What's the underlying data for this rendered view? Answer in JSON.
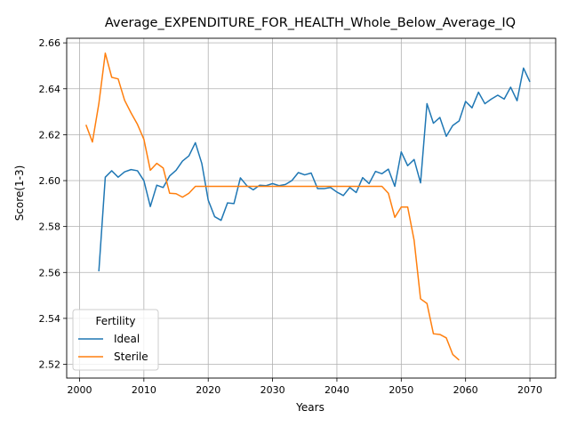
{
  "chart_data": {
    "type": "line",
    "title": "Average_EXPENDITURE_FOR_HEALTH_Whole_Below_Average_IQ",
    "xlabel": "Years",
    "ylabel": "Score(1-3)",
    "xlim": [
      1998,
      2074
    ],
    "ylim": [
      2.514,
      2.662
    ],
    "xticks": [
      2000,
      2010,
      2020,
      2030,
      2040,
      2050,
      2060,
      2070
    ],
    "yticks": [
      2.52,
      2.54,
      2.56,
      2.58,
      2.6,
      2.62,
      2.64,
      2.66
    ],
    "xtick_labels": [
      "2000",
      "2010",
      "2020",
      "2030",
      "2040",
      "2050",
      "2060",
      "2070"
    ],
    "ytick_labels": [
      "2.52",
      "2.54",
      "2.56",
      "2.58",
      "2.60",
      "2.62",
      "2.64",
      "2.66"
    ],
    "grid": true,
    "legend": {
      "title": "Fertility",
      "placement": "lower-left"
    },
    "series": [
      {
        "name": "Ideal",
        "color": "#1f77b4",
        "x": [
          2003,
          2004,
          2005,
          2006,
          2007,
          2008,
          2009,
          2010,
          2011,
          2012,
          2013,
          2014,
          2015,
          2016,
          2017,
          2018,
          2019,
          2020,
          2021,
          2022,
          2023,
          2024,
          2025,
          2026,
          2027,
          2028,
          2029,
          2030,
          2031,
          2032,
          2033,
          2034,
          2035,
          2036,
          2037,
          2038,
          2039,
          2040,
          2041,
          2042,
          2043,
          2044,
          2045,
          2046,
          2047,
          2048,
          2049,
          2050,
          2051,
          2052,
          2053,
          2054,
          2055,
          2056,
          2057,
          2058,
          2059,
          2060,
          2061,
          2062,
          2063,
          2064,
          2065,
          2066,
          2067,
          2068,
          2069,
          2070
        ],
        "y": [
          2.5605,
          2.6015,
          2.6043,
          2.6015,
          2.6038,
          2.6048,
          2.6043,
          2.6,
          2.5887,
          2.598,
          2.597,
          2.602,
          2.6045,
          2.6085,
          2.6108,
          2.6165,
          2.6075,
          2.5915,
          2.5843,
          2.5827,
          2.5903,
          2.59,
          2.6012,
          2.5978,
          2.596,
          2.598,
          2.5978,
          2.5987,
          2.5978,
          2.5983,
          2.6,
          2.6035,
          2.6025,
          2.6033,
          2.5965,
          2.5965,
          2.597,
          2.595,
          2.5935,
          2.597,
          2.5948,
          2.6013,
          2.5987,
          2.604,
          2.603,
          2.605,
          2.5975,
          2.6125,
          2.6065,
          2.6092,
          2.599,
          2.6335,
          2.625,
          2.6275,
          2.6193,
          2.624,
          2.626,
          2.6345,
          2.6317,
          2.6385,
          2.6335,
          2.6355,
          2.6372,
          2.6355,
          2.6407,
          2.6348,
          2.649,
          2.643
        ]
      },
      {
        "name": "Sterile",
        "color": "#ff7f0e",
        "x": [
          2001,
          2002,
          2003,
          2004,
          2005,
          2006,
          2007,
          2008,
          2009,
          2010,
          2011,
          2012,
          2013,
          2014,
          2015,
          2016,
          2017,
          2018,
          2019,
          2020,
          2021,
          2022,
          2023,
          2024,
          2025,
          2026,
          2027,
          2028,
          2029,
          2030,
          2031,
          2032,
          2033,
          2034,
          2035,
          2036,
          2037,
          2038,
          2039,
          2040,
          2041,
          2042,
          2043,
          2044,
          2045,
          2046,
          2047,
          2048,
          2049,
          2050,
          2051,
          2052,
          2053,
          2054,
          2055,
          2056,
          2057,
          2058,
          2059
        ],
        "y": [
          2.6243,
          2.6168,
          2.6335,
          2.6555,
          2.645,
          2.6443,
          2.635,
          2.6295,
          2.6245,
          2.618,
          2.6045,
          2.6075,
          2.6055,
          2.5945,
          2.5943,
          2.5928,
          2.5945,
          2.5975,
          2.5975,
          2.5975,
          2.5975,
          2.5975,
          2.5975,
          2.5975,
          2.5975,
          2.5975,
          2.5975,
          2.5975,
          2.5975,
          2.5975,
          2.5975,
          2.5975,
          2.5975,
          2.5975,
          2.5975,
          2.5975,
          2.5975,
          2.5975,
          2.5975,
          2.5975,
          2.5975,
          2.5975,
          2.5975,
          2.5975,
          2.5975,
          2.5975,
          2.5975,
          2.5945,
          2.584,
          2.5885,
          2.5885,
          2.574,
          2.5485,
          2.5465,
          2.5333,
          2.533,
          2.5315,
          2.5243,
          2.5218
        ]
      }
    ]
  }
}
